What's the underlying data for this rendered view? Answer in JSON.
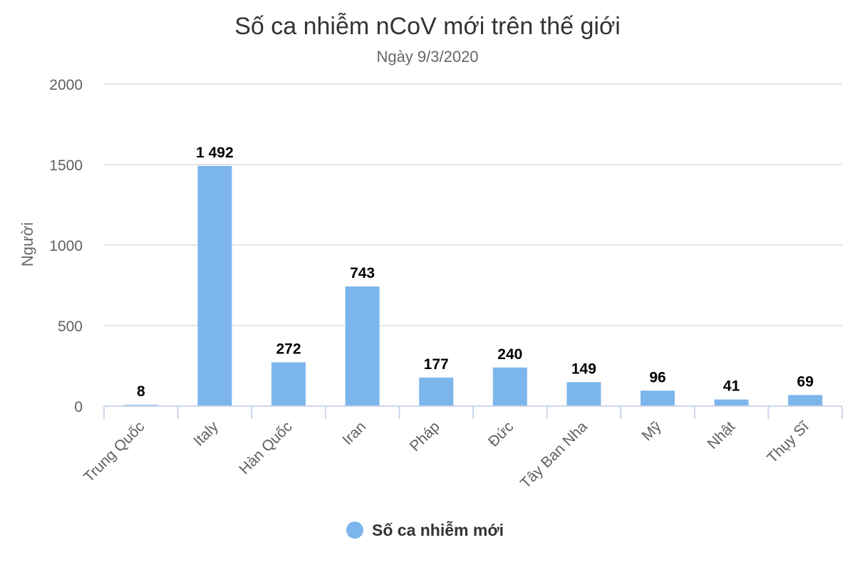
{
  "chart_data": {
    "type": "bar",
    "title": "Số ca nhiễm nCoV mới trên thế giới",
    "subtitle": "Ngày 9/3/2020",
    "ylabel": "Người",
    "xlabel": "",
    "ylim": [
      0,
      2000
    ],
    "yticks": [
      "0",
      "500",
      "1000",
      "1500",
      "2000"
    ],
    "grid": true,
    "legend_position": "bottom-center",
    "categories": [
      "Trung Quốc",
      "Italy",
      "Hàn Quốc",
      "Iran",
      "Pháp",
      "Đức",
      "Tây Ban Nha",
      "Mỹ",
      "Nhật",
      "Thụy Sĩ"
    ],
    "series": [
      {
        "name": "Số ca nhiễm mới",
        "color": "#7cb5ec",
        "values": [
          8,
          1492,
          272,
          743,
          177,
          240,
          149,
          96,
          41,
          69
        ],
        "labels": [
          "8",
          "1 492",
          "272",
          "743",
          "177",
          "240",
          "149",
          "96",
          "41",
          "69"
        ]
      }
    ]
  }
}
